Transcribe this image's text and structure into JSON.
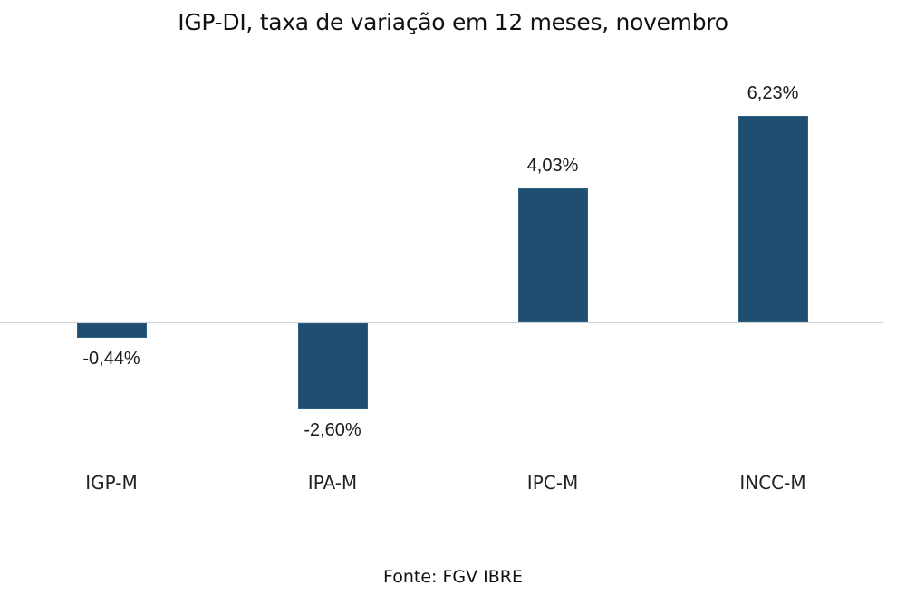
{
  "chart_data": {
    "type": "bar",
    "title": "IGP-DI, taxa de variação em 12 meses, novembro",
    "categories": [
      "IGP-M",
      "IPA-M",
      "IPC-M",
      "INCC-M"
    ],
    "values": [
      -0.44,
      -2.6,
      4.03,
      6.23
    ],
    "data_labels": [
      "-0,44%",
      "-2,60%",
      "4,03%",
      "6,23%"
    ],
    "xlabel": "",
    "ylabel": "",
    "grid": false,
    "legend": null,
    "bar_color": "#1f4e70",
    "source": "Fonte: FGV IBRE"
  }
}
